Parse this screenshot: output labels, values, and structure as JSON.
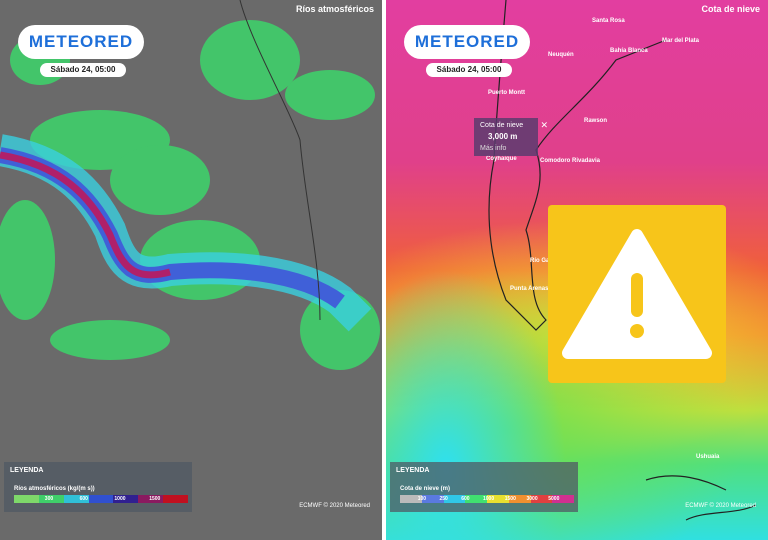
{
  "panels": [
    {
      "layer": "Ríos atmosféricos",
      "logo": "METEORED",
      "time": "Sábado 24, 05:00",
      "legend": {
        "title": "LEYENDA",
        "label": "Ríos atmosféricos (kg/(m s))",
        "ticks": [
          "300",
          "600",
          "1000",
          "1500"
        ]
      },
      "credit": "ECMWF © 2020 Meteored"
    },
    {
      "layer": "Cota de nieve",
      "logo": "METEORED",
      "time": "Sábado 24, 05:00",
      "cities": [
        "Santa Rosa",
        "Bahía Blanca",
        "Mar del Plata",
        "Neuquén",
        "Puerto Montt",
        "Rawson",
        "Coyhaique",
        "Comodoro Rivadavia",
        "Río Gallegos",
        "Punta Arenas",
        "Ushuaia"
      ],
      "popup": {
        "title": "Cota de nieve",
        "value": "3,000 m",
        "link": "Más info"
      },
      "legend": {
        "title": "LEYENDA",
        "label": "Cota de nieve (m)",
        "ticks": [
          "100",
          "250",
          "600",
          "1000",
          "1500",
          "3000",
          "5000"
        ]
      },
      "credit": "ECMWF © 2020 Meteored"
    }
  ]
}
